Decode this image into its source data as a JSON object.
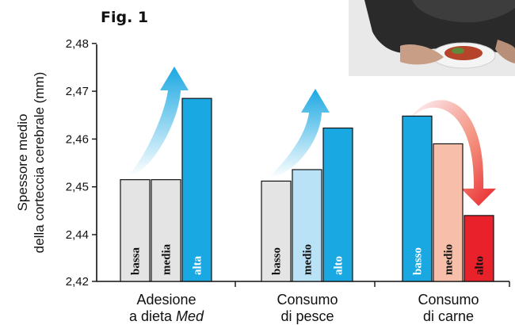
{
  "chart_data": {
    "type": "bar",
    "title": "Fig. 1",
    "ylabel_lines": [
      "Spessore medio",
      "della corteccia cerebrale (mm)"
    ],
    "ylim": [
      2.42,
      2.48
    ],
    "yticks": [
      "2,42",
      "2,44",
      "2,45",
      "2,46",
      "2,47",
      "2,48"
    ],
    "ytick_values": [
      2.42,
      2.44,
      2.45,
      2.46,
      2.47,
      2.48
    ],
    "groups": [
      {
        "label_lines": [
          "Adesione",
          "a dieta "
        ],
        "label_italic": "Med",
        "trend": "up",
        "bars": [
          {
            "label": "bassa",
            "value": 2.4515,
            "color": "#e4e4e4",
            "text_color": "#111111"
          },
          {
            "label": "media",
            "value": 2.4515,
            "color": "#e4e4e4",
            "text_color": "#111111"
          },
          {
            "label": "alta",
            "value": 2.4685,
            "color": "#1aa8e2",
            "text_color": "#ffffff"
          }
        ]
      },
      {
        "label_lines": [
          "Consumo",
          "di pesce"
        ],
        "trend": "up",
        "bars": [
          {
            "label": "basso",
            "value": 2.4512,
            "color": "#e4e4e4",
            "text_color": "#111111"
          },
          {
            "label": "medio",
            "value": 2.4536,
            "color": "#b9e2f7",
            "text_color": "#111111"
          },
          {
            "label": "alto",
            "value": 2.4623,
            "color": "#1aa8e2",
            "text_color": "#ffffff"
          }
        ]
      },
      {
        "label_lines": [
          "Consumo",
          "di carne"
        ],
        "trend": "down",
        "bars": [
          {
            "label": "basso",
            "value": 2.4648,
            "color": "#1aa8e2",
            "text_color": "#ffffff"
          },
          {
            "label": "medio",
            "value": 2.459,
            "color": "#f7bfaa",
            "text_color": "#111111"
          },
          {
            "label": "alto",
            "value": 2.444,
            "color": "#e8212b",
            "text_color": "#111111"
          }
        ]
      }
    ]
  }
}
